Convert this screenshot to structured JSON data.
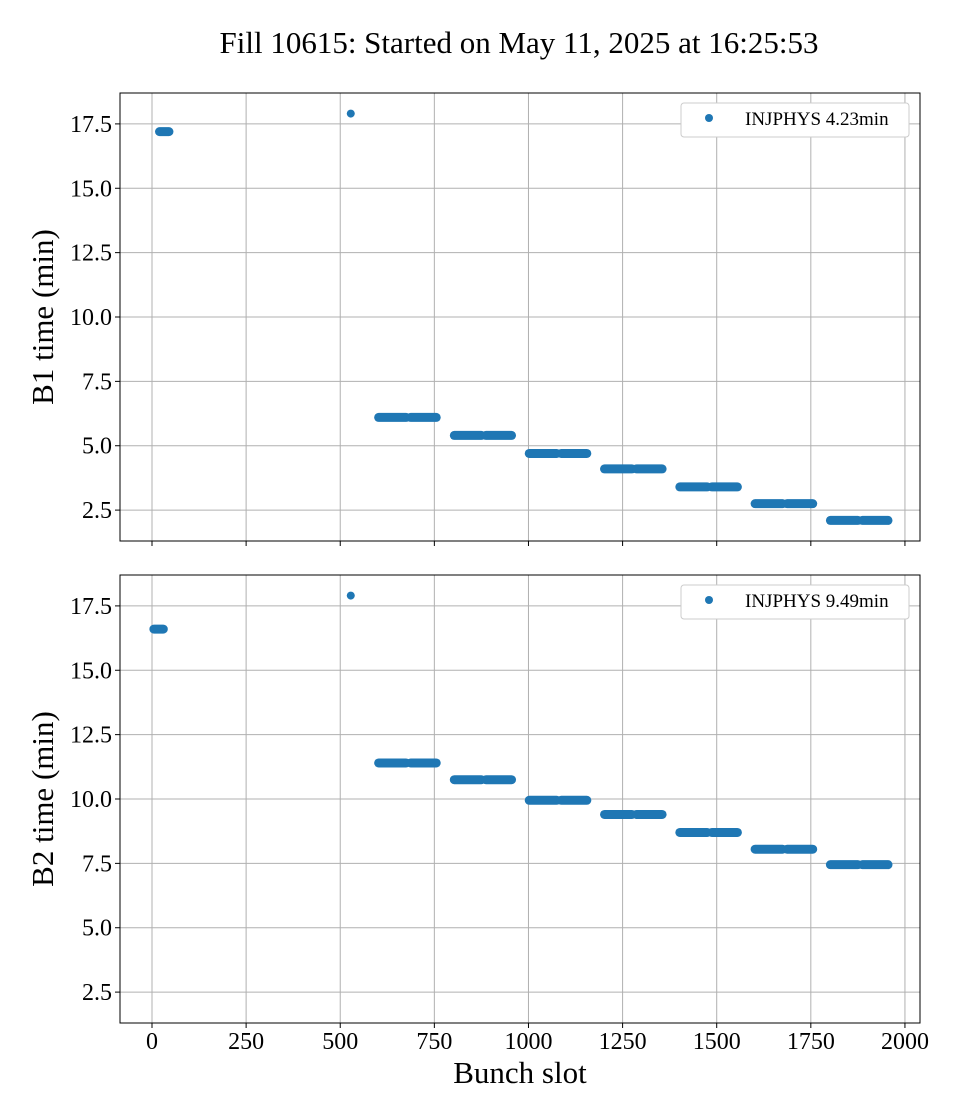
{
  "figure_title": "Fill 10615: Started on May 11, 2025 at 16:25:53",
  "colors": {
    "series": "#1f77b4",
    "grid": "#b0b0b0",
    "axis": "#000000"
  },
  "chart_data": [
    {
      "type": "scatter",
      "ylabel": "B1 time (min)",
      "xlabel": "",
      "xlim": [
        -85,
        2040
      ],
      "ylim": [
        1.3,
        18.7
      ],
      "xticks": [
        0,
        250,
        500,
        750,
        1000,
        1250,
        1500,
        1750,
        2000
      ],
      "xticklabels": [],
      "yticks": [
        2.5,
        5.0,
        7.5,
        10.0,
        12.5,
        15.0,
        17.5
      ],
      "yticklabels": [
        "2.5",
        "5.0",
        "7.5",
        "10.0",
        "12.5",
        "15.0",
        "17.5"
      ],
      "grid": true,
      "legend_position": "top-right",
      "series": [
        {
          "name": "INJPHYS 4.23min",
          "segments": [
            {
              "x": [
                20,
                45
              ],
              "y": 17.2
            },
            {
              "x": [
                528,
                528
              ],
              "y": 17.9
            },
            {
              "x": [
                602,
                675
              ],
              "y": 6.1
            },
            {
              "x": [
                687,
                755
              ],
              "y": 6.1
            },
            {
              "x": [
                803,
                875
              ],
              "y": 5.4
            },
            {
              "x": [
                887,
                955
              ],
              "y": 5.4
            },
            {
              "x": [
                1002,
                1075
              ],
              "y": 4.7
            },
            {
              "x": [
                1087,
                1155
              ],
              "y": 4.7
            },
            {
              "x": [
                1202,
                1275
              ],
              "y": 4.1
            },
            {
              "x": [
                1287,
                1355
              ],
              "y": 4.1
            },
            {
              "x": [
                1402,
                1475
              ],
              "y": 3.4
            },
            {
              "x": [
                1487,
                1555
              ],
              "y": 3.4
            },
            {
              "x": [
                1602,
                1675
              ],
              "y": 2.75
            },
            {
              "x": [
                1687,
                1755
              ],
              "y": 2.75
            },
            {
              "x": [
                1802,
                1875
              ],
              "y": 2.1
            },
            {
              "x": [
                1887,
                1955
              ],
              "y": 2.1
            }
          ]
        }
      ]
    },
    {
      "type": "scatter",
      "ylabel": "B2 time (min)",
      "xlabel": "Bunch slot",
      "xlim": [
        -85,
        2040
      ],
      "ylim": [
        1.3,
        18.7
      ],
      "xticks": [
        0,
        250,
        500,
        750,
        1000,
        1250,
        1500,
        1750,
        2000
      ],
      "xticklabels": [
        "0",
        "250",
        "500",
        "750",
        "1000",
        "1250",
        "1500",
        "1750",
        "2000"
      ],
      "yticks": [
        2.5,
        5.0,
        7.5,
        10.0,
        12.5,
        15.0,
        17.5
      ],
      "yticklabels": [
        "2.5",
        "5.0",
        "7.5",
        "10.0",
        "12.5",
        "15.0",
        "17.5"
      ],
      "grid": true,
      "legend_position": "top-right",
      "series": [
        {
          "name": "INJPHYS 9.49min",
          "segments": [
            {
              "x": [
                5,
                30
              ],
              "y": 16.6
            },
            {
              "x": [
                528,
                528
              ],
              "y": 17.9
            },
            {
              "x": [
                602,
                675
              ],
              "y": 11.4
            },
            {
              "x": [
                687,
                755
              ],
              "y": 11.4
            },
            {
              "x": [
                803,
                875
              ],
              "y": 10.75
            },
            {
              "x": [
                887,
                955
              ],
              "y": 10.75
            },
            {
              "x": [
                1002,
                1075
              ],
              "y": 9.95
            },
            {
              "x": [
                1087,
                1155
              ],
              "y": 9.95
            },
            {
              "x": [
                1202,
                1275
              ],
              "y": 9.4
            },
            {
              "x": [
                1287,
                1355
              ],
              "y": 9.4
            },
            {
              "x": [
                1402,
                1475
              ],
              "y": 8.7
            },
            {
              "x": [
                1487,
                1555
              ],
              "y": 8.7
            },
            {
              "x": [
                1602,
                1675
              ],
              "y": 8.05
            },
            {
              "x": [
                1687,
                1755
              ],
              "y": 8.05
            },
            {
              "x": [
                1802,
                1875
              ],
              "y": 7.45
            },
            {
              "x": [
                1887,
                1955
              ],
              "y": 7.45
            }
          ]
        }
      ]
    }
  ]
}
